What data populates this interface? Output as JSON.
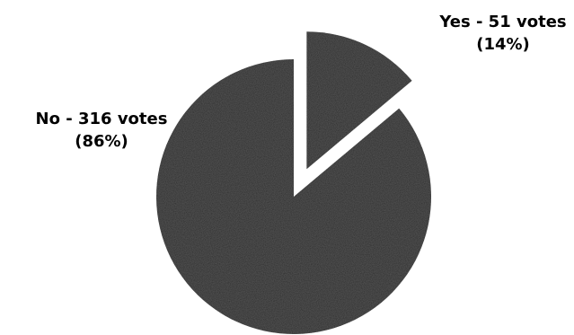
{
  "chart_data": {
    "type": "pie",
    "slices": [
      {
        "label": "Yes - 51 votes",
        "pct_label": "(14%)",
        "value": 51,
        "percent": 14,
        "exploded": true
      },
      {
        "label": "No - 316 votes",
        "pct_label": "(86%)",
        "value": 316,
        "percent": 86,
        "exploded": false
      }
    ],
    "colors": {
      "slice_fill": "#4d4d4d",
      "background": "#ffffff"
    }
  }
}
